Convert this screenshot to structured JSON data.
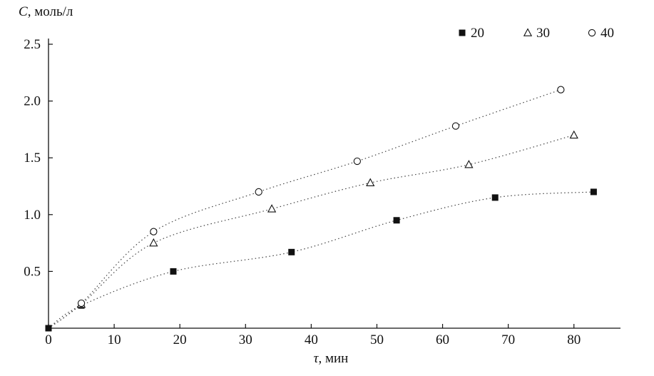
{
  "chart_data": {
    "type": "scatter",
    "title": "",
    "ylabel_var": "C",
    "ylabel_rest": ", моль/л",
    "xlabel_var": "τ",
    "xlabel_rest": ", мин",
    "xlim": [
      0,
      86
    ],
    "ylim": [
      0,
      2.5
    ],
    "x_ticks": [
      0,
      10,
      20,
      30,
      40,
      50,
      60,
      70,
      80
    ],
    "x_tick_labels": [
      "0",
      "10",
      "20",
      "30",
      "40",
      "50",
      "60",
      "70",
      "80"
    ],
    "y_ticks": [
      0.5,
      1.0,
      1.5,
      2.0,
      2.5
    ],
    "y_tick_labels": [
      "0.5",
      "1.0",
      "1.5",
      "2.0",
      "2.5"
    ],
    "grid": false,
    "legend_position": "top-right",
    "line_style": "dotted",
    "series": [
      {
        "name": "20",
        "marker": "filled-square",
        "curve_prefix": [],
        "points": [
          [
            0,
            0
          ],
          [
            5,
            0.2
          ],
          [
            19,
            0.5
          ],
          [
            37,
            0.67
          ],
          [
            53,
            0.95
          ],
          [
            68,
            1.15
          ],
          [
            83,
            1.2
          ]
        ]
      },
      {
        "name": "30",
        "marker": "open-triangle",
        "curve_prefix": [
          [
            0,
            0
          ]
        ],
        "points": [
          [
            5,
            0.21
          ],
          [
            16,
            0.75
          ],
          [
            34,
            1.05
          ],
          [
            49,
            1.28
          ],
          [
            64,
            1.44
          ],
          [
            80,
            1.7
          ]
        ]
      },
      {
        "name": "40",
        "marker": "open-circle",
        "curve_prefix": [
          [
            0,
            0
          ]
        ],
        "points": [
          [
            5,
            0.22
          ],
          [
            16,
            0.85
          ],
          [
            32,
            1.2
          ],
          [
            47,
            1.47
          ],
          [
            62,
            1.78
          ],
          [
            78,
            2.1
          ]
        ]
      }
    ]
  }
}
